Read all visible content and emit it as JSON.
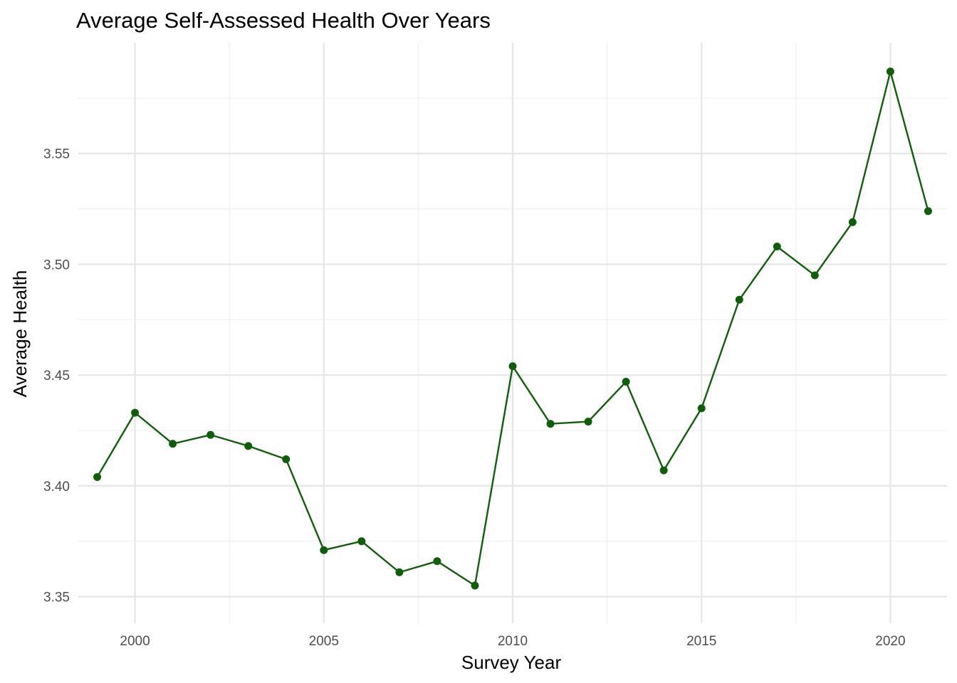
{
  "chart_data": {
    "type": "line",
    "title": "Average Self-Assessed Health Over Years",
    "xlabel": "Survey Year",
    "ylabel": "Average Health",
    "xlim": [
      1998.5,
      2021.5
    ],
    "ylim": [
      3.338,
      3.6
    ],
    "x_ticks": [
      2000,
      2005,
      2010,
      2015,
      2020
    ],
    "x_tick_labels": [
      "2000",
      "2005",
      "2010",
      "2015",
      "2020"
    ],
    "y_ticks": [
      3.35,
      3.4,
      3.45,
      3.5,
      3.55
    ],
    "y_tick_labels": [
      "3.35",
      "3.40",
      "3.45",
      "3.50",
      "3.55"
    ],
    "grid": true,
    "legend": "none",
    "color": "#0f5f0a",
    "x": [
      1999,
      2000,
      2001,
      2002,
      2003,
      2004,
      2005,
      2006,
      2007,
      2008,
      2009,
      2010,
      2011,
      2012,
      2013,
      2014,
      2015,
      2016,
      2017,
      2018,
      2019,
      2020,
      2021
    ],
    "series": [
      {
        "values": [
          3.404,
          3.433,
          3.419,
          3.423,
          3.418,
          3.412,
          3.371,
          3.375,
          3.361,
          3.366,
          3.355,
          3.454,
          3.428,
          3.429,
          3.447,
          3.407,
          3.435,
          3.484,
          3.508,
          3.495,
          3.519,
          3.587,
          3.524
        ]
      }
    ]
  }
}
